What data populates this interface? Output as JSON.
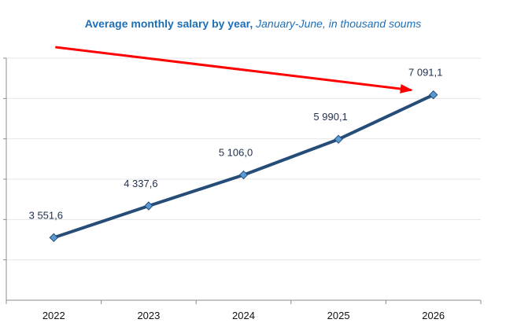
{
  "chart_data": {
    "type": "line",
    "title": "Average monthly salary by year,",
    "subtitle": "January-June, in thousand soums",
    "categories": [
      "2022",
      "2023",
      "2024",
      "2025",
      "2026"
    ],
    "series": [
      {
        "values": [
          3551.6,
          4337.6,
          5106.0,
          5990.1,
          7091.1
        ],
        "labels": [
          "3 551,6",
          "4 337,6",
          "5 106,0",
          "5 990,1",
          "7 091,1"
        ]
      }
    ],
    "ylim": [
      2000,
      8000
    ],
    "grid": true,
    "legend": "none",
    "annotation": "red-trend-arrow"
  },
  "colors": {
    "title": "#1f6fb5",
    "line": "#264c78",
    "marker": "#5b9bd5",
    "marker_stroke": "#264c78",
    "arrow": "#ff0000",
    "grid": "#e6e6e6",
    "axis": "#8c8c8c"
  }
}
